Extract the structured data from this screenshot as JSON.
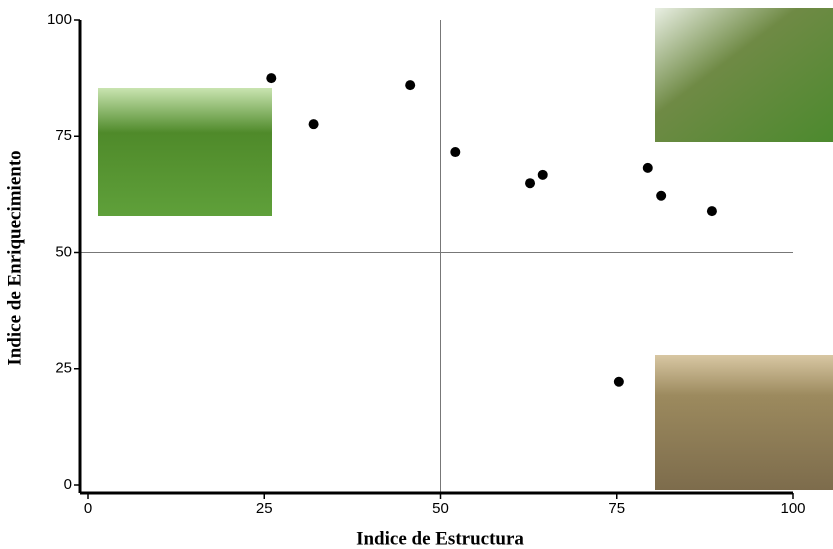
{
  "chart_data": {
    "type": "scatter",
    "x_label": "Indice de Estructura",
    "y_label": "Indice de Enriquecimiento",
    "x": [
      26,
      32,
      45.7,
      52.1,
      62.7,
      64.5,
      79.4,
      81.3,
      88.5,
      75.3
    ],
    "values": [
      87.5,
      77.6,
      86.0,
      71.6,
      64.9,
      66.7,
      68.2,
      62.2,
      58.9,
      22.2
    ],
    "color": "#000000",
    "xlim": [
      0,
      100
    ],
    "ylim": [
      0,
      100
    ],
    "xticks": [
      0,
      25,
      50,
      75,
      100
    ],
    "yticks": [
      0,
      25,
      50,
      75,
      100
    ],
    "reference_x": 50,
    "reference_y": 50
  }
}
